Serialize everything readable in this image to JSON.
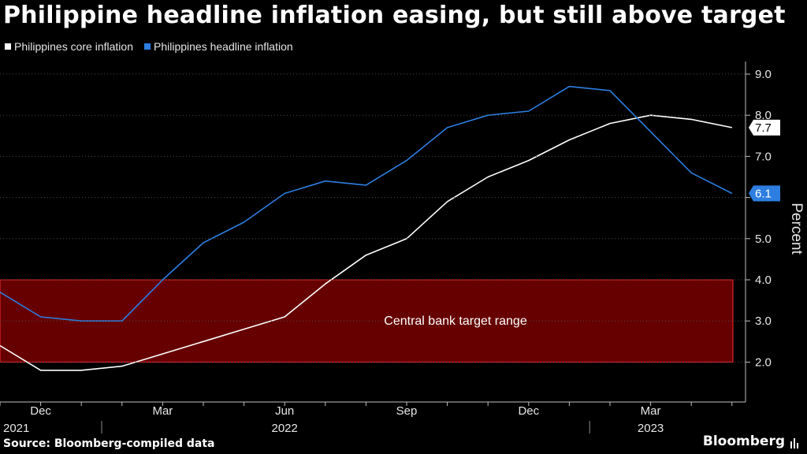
{
  "chart_data": {
    "type": "line",
    "title": "Philippine headline inflation easing, but still above target",
    "ylabel": "Percent",
    "xlabel": "",
    "ylim": [
      1.0,
      9.5
    ],
    "yticks": [
      2.0,
      3.0,
      4.0,
      5.0,
      6.0,
      7.0,
      8.0,
      9.0
    ],
    "ytick_labels": [
      "2.0",
      "3.0",
      "4.0",
      "5.0",
      "6.0",
      "7.0",
      "8.0",
      "9.0"
    ],
    "x": [
      "Nov 2021",
      "Dec 2021",
      "Jan 2022",
      "Feb 2022",
      "Mar 2022",
      "Apr 2022",
      "May 2022",
      "Jun 2022",
      "Jul 2022",
      "Aug 2022",
      "Sep 2022",
      "Oct 2022",
      "Nov 2022",
      "Dec 2022",
      "Jan 2023",
      "Feb 2023",
      "Mar 2023",
      "Apr 2023",
      "May 2023"
    ],
    "x_ticks": [
      {
        "index": 1,
        "label": "Dec",
        "year": "2021"
      },
      {
        "index": 4,
        "label": "Mar",
        "year": ""
      },
      {
        "index": 7,
        "label": "Jun",
        "year": "2022"
      },
      {
        "index": 10,
        "label": "Sep",
        "year": ""
      },
      {
        "index": 13,
        "label": "Dec",
        "year": ""
      },
      {
        "index": 16,
        "label": "Mar",
        "year": "2023"
      }
    ],
    "series": [
      {
        "name": "Philippines core inflation",
        "color": "#ffffff",
        "values": [
          2.4,
          1.8,
          1.8,
          1.9,
          2.2,
          2.5,
          2.8,
          3.1,
          3.9,
          4.6,
          5.0,
          5.9,
          6.5,
          6.9,
          7.4,
          7.8,
          8.0,
          7.9,
          7.7
        ],
        "last_label": "7.7"
      },
      {
        "name": "Philippines headline inflation",
        "color": "#2d7ee0",
        "values": [
          3.7,
          3.1,
          3.0,
          3.0,
          4.0,
          4.9,
          5.4,
          6.1,
          6.4,
          6.3,
          6.9,
          7.7,
          8.0,
          8.1,
          8.7,
          8.6,
          7.6,
          6.6,
          6.1
        ],
        "last_label": "6.1"
      }
    ],
    "annotations": [
      {
        "type": "band",
        "label": "Central bank target range",
        "y_from": 2.0,
        "y_to": 4.0,
        "color": "#cc0000"
      }
    ]
  },
  "source": "Source: Bloomberg-compiled data",
  "brand": "Bloomberg"
}
